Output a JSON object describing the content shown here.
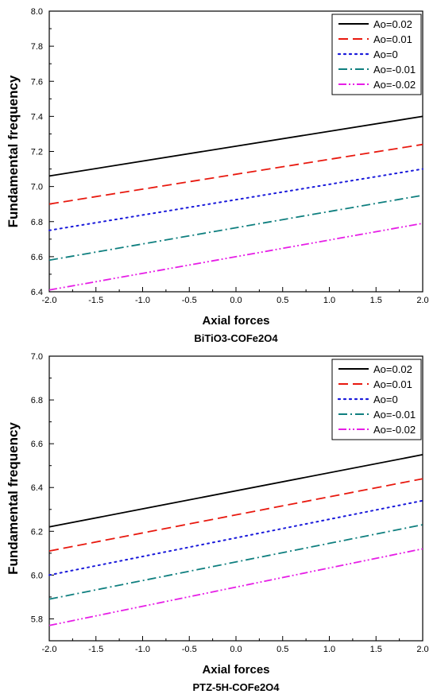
{
  "chart_data": [
    {
      "type": "line",
      "material": "BiTiO3-COFe2O4",
      "xlabel": "Axial forces",
      "ylabel": "Fundamental frequency",
      "xlim": [
        -2.0,
        2.0
      ],
      "ylim": [
        6.4,
        8.0
      ],
      "xticks": [
        "-2.0",
        "-1.5",
        "-1.0",
        "-0.5",
        "0.0",
        "0.5",
        "1.0",
        "1.5",
        "2.0"
      ],
      "yticks": [
        "6.4",
        "6.6",
        "6.8",
        "7.0",
        "7.2",
        "7.4",
        "7.6",
        "7.8",
        "8.0"
      ],
      "legend_position": "top-right",
      "x": [
        -2.0,
        2.0
      ],
      "series": [
        {
          "name": "Ao=0.02",
          "values": [
            7.06,
            7.4
          ],
          "color": "#000000",
          "style": "solid"
        },
        {
          "name": "Ao=0.01",
          "values": [
            6.9,
            7.24
          ],
          "color": "#e8190f",
          "style": "dash"
        },
        {
          "name": "Ao=0",
          "values": [
            6.75,
            7.1
          ],
          "color": "#1a1adb",
          "style": "dot"
        },
        {
          "name": "Ao=-0.01",
          "values": [
            6.58,
            6.95
          ],
          "color": "#0f7f7f",
          "style": "dashdot"
        },
        {
          "name": "Ao=-0.02",
          "values": [
            6.41,
            6.79
          ],
          "color": "#e61ee6",
          "style": "dashdotdot"
        }
      ]
    },
    {
      "type": "line",
      "material": "PTZ-5H-COFe2O4",
      "xlabel": "Axial forces",
      "ylabel": "Fundamental frequency",
      "xlim": [
        -2.0,
        2.0
      ],
      "ylim": [
        5.7,
        7.0
      ],
      "xticks": [
        "-2.0",
        "-1.5",
        "-1.0",
        "-0.5",
        "0.0",
        "0.5",
        "1.0",
        "1.5",
        "2.0"
      ],
      "yticks": [
        "5.8",
        "6.0",
        "6.2",
        "6.4",
        "6.6",
        "6.8",
        "7.0"
      ],
      "legend_position": "top-right",
      "x": [
        -2.0,
        2.0
      ],
      "series": [
        {
          "name": "Ao=0.02",
          "values": [
            6.22,
            6.55
          ],
          "color": "#000000",
          "style": "solid"
        },
        {
          "name": "Ao=0.01",
          "values": [
            6.11,
            6.44
          ],
          "color": "#e8190f",
          "style": "dash"
        },
        {
          "name": "Ao=0",
          "values": [
            6.0,
            6.34
          ],
          "color": "#1a1adb",
          "style": "dot"
        },
        {
          "name": "Ao=-0.01",
          "values": [
            5.89,
            6.23
          ],
          "color": "#0f7f7f",
          "style": "dashdot"
        },
        {
          "name": "Ao=-0.02",
          "values": [
            5.77,
            6.12
          ],
          "color": "#e61ee6",
          "style": "dashdotdot"
        }
      ]
    }
  ]
}
